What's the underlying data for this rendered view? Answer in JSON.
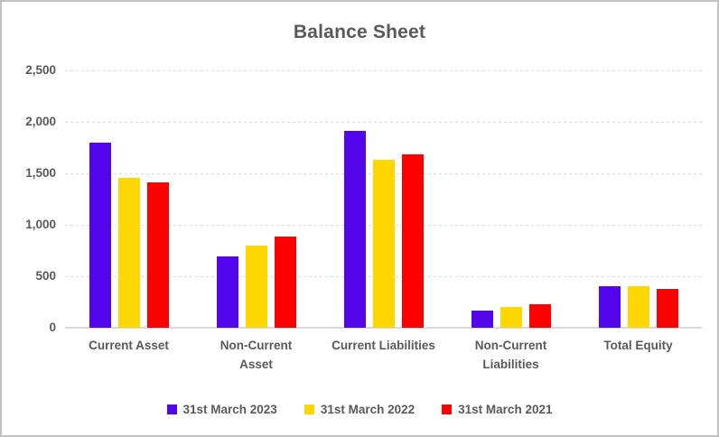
{
  "title": "Balance Sheet",
  "chart_data": {
    "type": "bar",
    "title": "Balance Sheet",
    "categories": [
      "Current Asset",
      "Non-Current Asset",
      "Current Liabilities",
      "Non-Current Liabilities",
      "Total Equity"
    ],
    "category_label_lines": [
      [
        "Current Asset"
      ],
      [
        "Non-Current",
        "Asset"
      ],
      [
        "Current Liabilities"
      ],
      [
        "Non-Current",
        "Liabilities"
      ],
      [
        "Total Equity"
      ]
    ],
    "series": [
      {
        "name": "31st March 2023",
        "color": "#5306EB",
        "values": [
          1800,
          695,
          1915,
          165,
          400
        ]
      },
      {
        "name": "31st March 2022",
        "color": "#FFD700",
        "values": [
          1455,
          795,
          1630,
          205,
          405
        ]
      },
      {
        "name": "31st March 2021",
        "color": "#FF0000",
        "values": [
          1410,
          885,
          1680,
          230,
          375
        ]
      }
    ],
    "xlabel": "",
    "ylabel": "",
    "ylim": [
      0,
      2500
    ],
    "yticks": [
      0,
      500,
      1000,
      1500,
      2000,
      2500
    ],
    "ytick_labels": [
      "0",
      "500",
      "1,000",
      "1,500",
      "2,000",
      "2,500"
    ],
    "grid": true,
    "legend_position": "bottom",
    "colors": {
      "text": "#595959",
      "gridline": "#D9D9D9",
      "background": "#FFFFFF",
      "border": "#C2C2C2"
    }
  }
}
